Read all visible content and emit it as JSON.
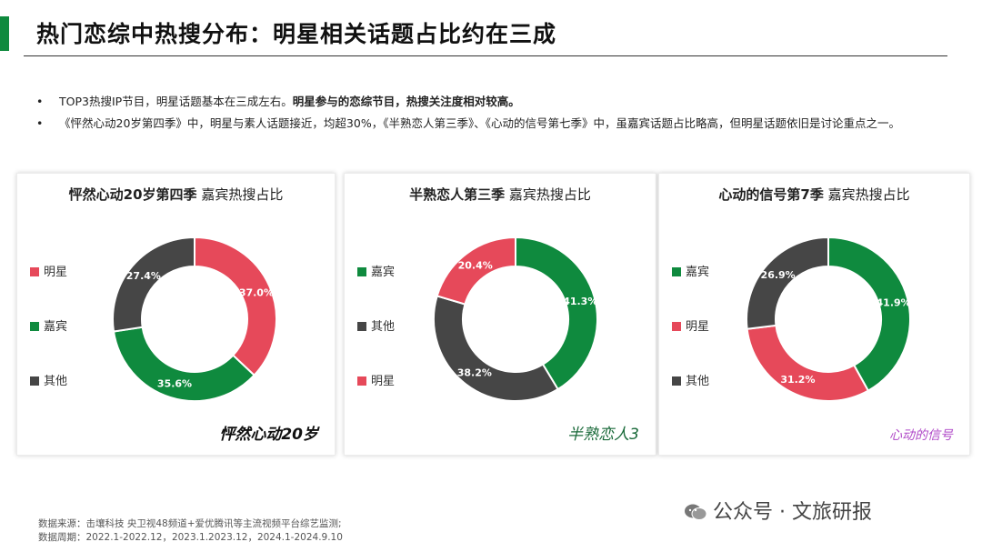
{
  "title": "热门恋综中热搜分布：明星相关话题占比约在三成",
  "bullets": [
    {
      "normal": "TOP3热搜IP节目，明星话题基本在三成左右。",
      "bold": "明星参与的恋综节目，热搜关注度相对较高。"
    },
    {
      "normal": "《怦然心动20岁第四季》中，明星与素人话题接近，均超30%，《半熟恋人第三季》、《心动的信号第七季》中，虽嘉宾话题占比略高，但明星话题依旧是讨论重点之一。",
      "bold": ""
    }
  ],
  "colors": {
    "star": "#e6495a",
    "guest": "#0f8a3e",
    "other": "#464646",
    "accent": "#0f8a3e"
  },
  "chart_data": [
    {
      "type": "pie",
      "title_bold": "怦然心动20岁第四季",
      "title_rest": " 嘉宾热搜占比",
      "legend": [
        "明星",
        "嘉宾",
        "其他"
      ],
      "slices": [
        {
          "name": "明星",
          "value": 37.0,
          "label": "37.0%",
          "color": "#e6495a"
        },
        {
          "name": "嘉宾",
          "value": 35.6,
          "label": "35.6%",
          "color": "#0f8a3e"
        },
        {
          "name": "其他",
          "value": 27.4,
          "label": "27.4%",
          "color": "#464646"
        }
      ],
      "logo": "怦然心动20岁"
    },
    {
      "type": "pie",
      "title_bold": "半熟恋人第三季",
      "title_rest": " 嘉宾热搜占比",
      "legend": [
        "嘉宾",
        "其他",
        "明星"
      ],
      "slices": [
        {
          "name": "嘉宾",
          "value": 41.3,
          "label": "41.3%",
          "color": "#0f8a3e"
        },
        {
          "name": "其他",
          "value": 38.2,
          "label": "38.2%",
          "color": "#464646"
        },
        {
          "name": "明星",
          "value": 20.4,
          "label": "20.4%",
          "color": "#e6495a"
        }
      ],
      "logo": "半熟恋人3"
    },
    {
      "type": "pie",
      "title_bold": "心动的信号第7季",
      "title_rest": " 嘉宾热搜占比",
      "legend": [
        "嘉宾",
        "明星",
        "其他"
      ],
      "slices": [
        {
          "name": "嘉宾",
          "value": 41.9,
          "label": "41.9%",
          "color": "#0f8a3e"
        },
        {
          "name": "明星",
          "value": 31.2,
          "label": "31.2%",
          "color": "#e6495a"
        },
        {
          "name": "其他",
          "value": 26.9,
          "label": "26.9%",
          "color": "#464646"
        }
      ],
      "logo": "心动的信号"
    }
  ],
  "source": {
    "line1": "数据来源：击壤科技 央卫视48频道+爱优腾讯等主流视频平台综艺监测;",
    "line2": "数据周期：2022.1-2022.12，2023.1.2023.12，2024.1-2024.9.10"
  },
  "watermark": "公众号 · 文旅研报"
}
